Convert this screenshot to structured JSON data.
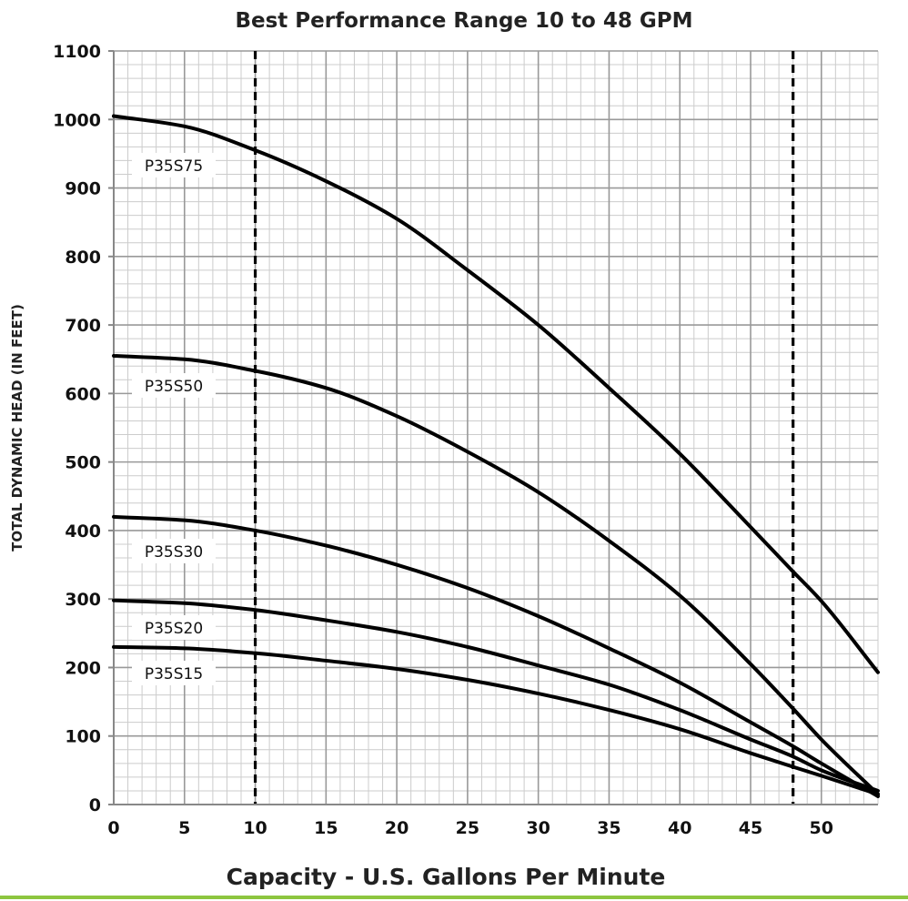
{
  "chart_data": {
    "type": "line",
    "title": "Best Performance Range 10 to 48 GPM",
    "xlabel": "Capacity - U.S. Gallons Per Minute",
    "ylabel": "TOTAL DYNAMIC HEAD (IN FEET)",
    "xlim": [
      0,
      54
    ],
    "ylim": [
      0,
      1100
    ],
    "x_ticks": [
      "0",
      "5",
      "10",
      "15",
      "20",
      "25",
      "30",
      "35",
      "40",
      "45",
      "50"
    ],
    "y_ticks": [
      "0",
      "100",
      "200",
      "300",
      "400",
      "500",
      "600",
      "700",
      "800",
      "900",
      "1000",
      "1100"
    ],
    "grid": true,
    "minor_grid": true,
    "reference_lines": [
      10,
      48
    ],
    "series": [
      {
        "name": "P35S75",
        "x": [
          0,
          5,
          10,
          15,
          20,
          25,
          30,
          35,
          40,
          45,
          48,
          50,
          54
        ],
        "y": [
          1005,
          990,
          955,
          910,
          855,
          780,
          700,
          608,
          512,
          405,
          340,
          297,
          193
        ]
      },
      {
        "name": "P35S50",
        "x": [
          0,
          5,
          10,
          15,
          20,
          25,
          30,
          35,
          40,
          45,
          48,
          50,
          54
        ],
        "y": [
          655,
          650,
          633,
          608,
          567,
          515,
          456,
          385,
          305,
          205,
          140,
          95,
          15
        ]
      },
      {
        "name": "P35S30",
        "x": [
          0,
          5,
          10,
          15,
          20,
          25,
          30,
          35,
          40,
          45,
          48,
          50,
          54
        ],
        "y": [
          420,
          415,
          400,
          378,
          350,
          316,
          275,
          228,
          178,
          120,
          85,
          60,
          12
        ]
      },
      {
        "name": "P35S20",
        "x": [
          0,
          5,
          10,
          15,
          20,
          25,
          30,
          35,
          40,
          45,
          48,
          50,
          54
        ],
        "y": [
          298,
          294,
          284,
          269,
          252,
          230,
          203,
          175,
          138,
          95,
          70,
          50,
          20
        ]
      },
      {
        "name": "P35S15",
        "x": [
          0,
          5,
          10,
          15,
          20,
          25,
          30,
          35,
          40,
          45,
          48,
          50,
          54
        ],
        "y": [
          230,
          228,
          221,
          210,
          198,
          182,
          162,
          138,
          110,
          75,
          55,
          42,
          15
        ]
      }
    ],
    "line_color": "#000000",
    "grid_color": "#999999",
    "minor_grid_color": "#cccccc",
    "accent_color": "#8dc63f"
  }
}
